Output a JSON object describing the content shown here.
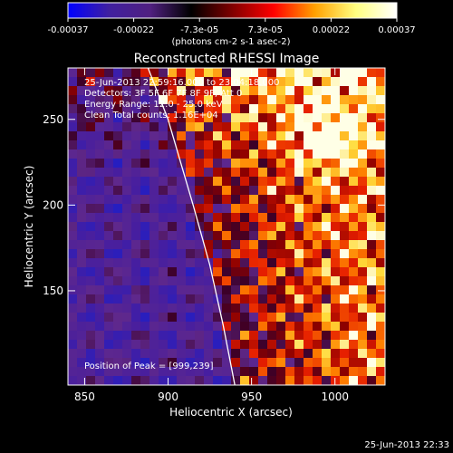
{
  "colorbar": {
    "ticks": [
      "-0.00037",
      "-0.00022",
      "-7.3e-05",
      "7.3e-05",
      "0.00022",
      "0.00037"
    ],
    "units": "(photons cm-2 s-1 asec-2)",
    "range": [
      -0.00037,
      0.00037
    ],
    "colors": [
      "#0000ff",
      "#4020a0",
      "#502080",
      "#000000",
      "#800000",
      "#ff0000",
      "#ffa000",
      "#ffff80",
      "#ffffff"
    ]
  },
  "chart_data": {
    "type": "heatmap",
    "title": "Reconstructed RHESSI Image",
    "xlabel": "Heliocentric X (arcsec)",
    "ylabel": "Heliocentric Y (arcsec)",
    "xlim": [
      840,
      1030
    ],
    "ylim": [
      95,
      280
    ],
    "xticks": [
      "850",
      "900",
      "950",
      "1000"
    ],
    "yticks": [
      "150",
      "200",
      "250"
    ],
    "annotations": [
      "25-Jun-2013 22:59:16.000 to 23:04:18.000",
      "Detectors: 3F 5F 6F 7F 8F 9F, Att 0",
      "Energy Range: 12.0 - 25.0 keV",
      "Clean    Total counts: 1.16E+04"
    ],
    "peak_text": "Position of Peak = [999,239]",
    "peak": [
      999,
      239
    ],
    "limb_curve": [
      [
        888,
        280
      ],
      [
        900,
        250
      ],
      [
        915,
        200
      ],
      [
        925,
        165
      ],
      [
        933,
        130
      ],
      [
        940,
        95
      ]
    ],
    "colors": {
      "limb": "#ffffff"
    }
  },
  "footer": {
    "timestamp": "25-Jun-2013 22:33"
  }
}
